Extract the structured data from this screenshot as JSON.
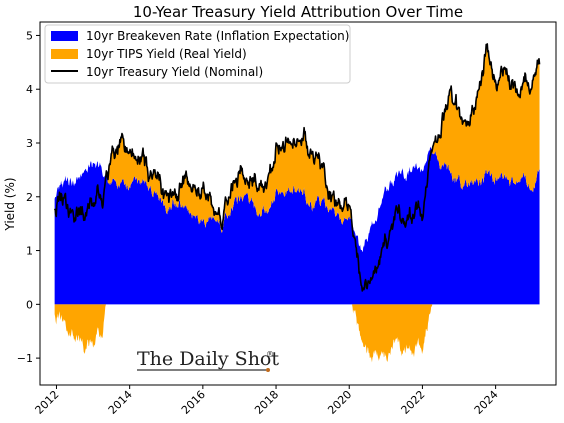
{
  "chart_data": {
    "type": "area",
    "title": "10-Year Treasury Yield Attribution Over Time",
    "xlabel": "",
    "ylabel": "Yield (%)",
    "xlim": [
      2011.55,
      2025.65
    ],
    "ylim": [
      -1.5,
      5.25
    ],
    "x_ticks": [
      "2012",
      "2014",
      "2016",
      "2018",
      "2020",
      "2022",
      "2024"
    ],
    "y_ticks": [
      "−1",
      "0",
      "1",
      "2",
      "3",
      "4",
      "5"
    ],
    "grid": false,
    "legend_position": "upper-left",
    "series": [
      {
        "name": "10yr Breakeven Rate (Inflation Expectation)",
        "kind": "stacked-area",
        "color": "#0000ff",
        "x": [
          2011.95,
          2012.2,
          2012.5,
          2012.75,
          2013.0,
          2013.25,
          2013.5,
          2013.75,
          2014.0,
          2014.25,
          2014.5,
          2014.75,
          2015.0,
          2015.25,
          2015.5,
          2015.75,
          2016.0,
          2016.25,
          2016.5,
          2016.75,
          2017.0,
          2017.25,
          2017.5,
          2017.75,
          2018.0,
          2018.25,
          2018.5,
          2018.75,
          2019.0,
          2019.25,
          2019.5,
          2019.75,
          2020.0,
          2020.15,
          2020.3,
          2020.5,
          2020.75,
          2021.0,
          2021.25,
          2021.5,
          2021.75,
          2022.0,
          2022.25,
          2022.5,
          2022.75,
          2023.0,
          2023.25,
          2023.5,
          2023.75,
          2024.0,
          2024.25,
          2024.5,
          2024.75,
          2025.0,
          2025.2
        ],
        "y": [
          2.0,
          2.25,
          2.3,
          2.5,
          2.55,
          2.5,
          2.25,
          2.15,
          2.2,
          2.25,
          2.25,
          2.0,
          1.75,
          1.9,
          1.75,
          1.55,
          1.5,
          1.6,
          1.45,
          1.7,
          1.95,
          1.9,
          1.75,
          1.85,
          2.05,
          2.15,
          2.1,
          2.15,
          1.8,
          1.9,
          1.75,
          1.6,
          1.7,
          1.2,
          1.0,
          1.3,
          1.65,
          2.1,
          2.35,
          2.35,
          2.5,
          2.5,
          2.9,
          2.5,
          2.45,
          2.25,
          2.3,
          2.25,
          2.35,
          2.2,
          2.35,
          2.25,
          2.25,
          2.35,
          2.4
        ]
      },
      {
        "name": "10yr TIPS Yield (Real Yield)",
        "kind": "stacked-area",
        "color": "#ffa500",
        "x": [
          2011.95,
          2012.2,
          2012.5,
          2012.75,
          2013.0,
          2013.25,
          2013.5,
          2013.75,
          2014.0,
          2014.25,
          2014.5,
          2014.75,
          2015.0,
          2015.25,
          2015.5,
          2015.75,
          2016.0,
          2016.25,
          2016.5,
          2016.75,
          2017.0,
          2017.25,
          2017.5,
          2017.75,
          2018.0,
          2018.25,
          2018.5,
          2018.75,
          2019.0,
          2019.25,
          2019.5,
          2019.75,
          2020.0,
          2020.15,
          2020.3,
          2020.5,
          2020.75,
          2021.0,
          2021.25,
          2021.5,
          2021.75,
          2022.0,
          2022.25,
          2022.5,
          2022.75,
          2023.0,
          2023.25,
          2023.5,
          2023.75,
          2024.0,
          2024.25,
          2024.5,
          2024.75,
          2025.0,
          2025.2
        ],
        "y": [
          -0.1,
          -0.35,
          -0.65,
          -0.8,
          -0.75,
          -0.5,
          0.45,
          0.75,
          0.7,
          0.45,
          0.3,
          0.3,
          0.25,
          0.2,
          0.5,
          0.6,
          0.5,
          0.2,
          0.15,
          0.3,
          0.5,
          0.45,
          0.4,
          0.5,
          0.75,
          0.85,
          0.85,
          1.05,
          0.95,
          0.6,
          0.3,
          0.1,
          0.15,
          -0.15,
          -0.6,
          -0.9,
          -0.9,
          -0.95,
          -0.65,
          -0.9,
          -0.9,
          -0.8,
          0.1,
          0.6,
          1.5,
          1.25,
          1.3,
          1.6,
          2.3,
          1.75,
          2.0,
          1.85,
          1.75,
          2.05,
          1.95
        ]
      },
      {
        "name": "10yr Treasury Yield (Nominal)",
        "kind": "line",
        "color": "#000000",
        "x": [
          2011.95,
          2012.2,
          2012.5,
          2012.75,
          2013.0,
          2013.25,
          2013.5,
          2013.75,
          2014.0,
          2014.25,
          2014.5,
          2014.75,
          2015.0,
          2015.25,
          2015.5,
          2015.75,
          2016.0,
          2016.25,
          2016.5,
          2016.75,
          2017.0,
          2017.25,
          2017.5,
          2017.75,
          2018.0,
          2018.25,
          2018.5,
          2018.75,
          2019.0,
          2019.25,
          2019.5,
          2019.75,
          2020.0,
          2020.15,
          2020.3,
          2020.5,
          2020.75,
          2021.0,
          2021.25,
          2021.5,
          2021.75,
          2022.0,
          2022.25,
          2022.5,
          2022.75,
          2023.0,
          2023.25,
          2023.5,
          2023.75,
          2024.0,
          2024.25,
          2024.5,
          2024.75,
          2025.0,
          2025.2
        ],
        "y": [
          1.9,
          1.9,
          1.65,
          1.7,
          1.8,
          2.0,
          2.7,
          2.9,
          2.95,
          2.7,
          2.55,
          2.3,
          2.0,
          2.1,
          2.25,
          2.15,
          2.0,
          1.8,
          1.6,
          2.0,
          2.45,
          2.35,
          2.15,
          2.35,
          2.8,
          3.0,
          2.95,
          3.2,
          2.75,
          2.5,
          2.05,
          1.7,
          1.85,
          1.05,
          0.4,
          0.4,
          0.75,
          1.15,
          1.7,
          1.45,
          1.6,
          1.7,
          3.0,
          3.1,
          3.95,
          3.5,
          3.6,
          3.85,
          4.65,
          3.95,
          4.35,
          4.1,
          4.0,
          4.4,
          4.35
        ]
      }
    ],
    "annotation": "The Daily Shot"
  }
}
